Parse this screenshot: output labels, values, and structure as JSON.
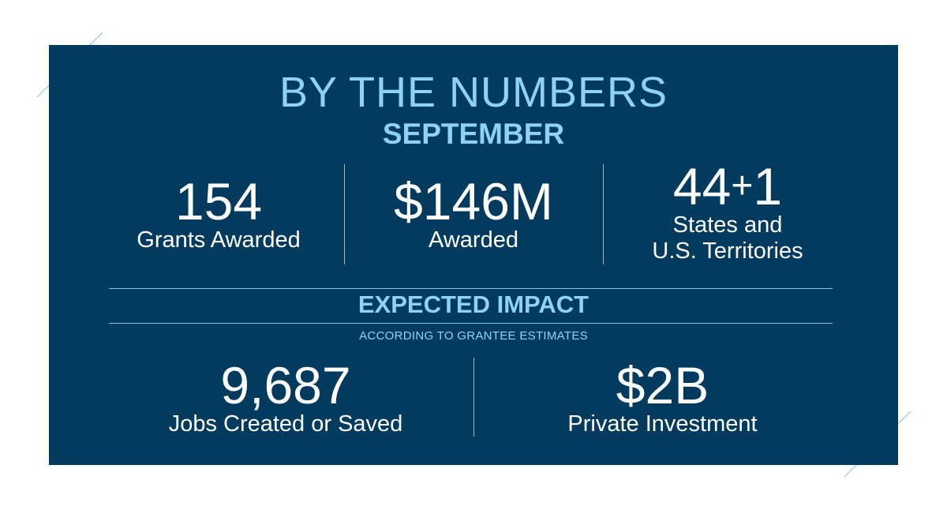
{
  "header": {
    "title": "BY THE NUMBERS",
    "period": "SEPTEMBER"
  },
  "stats": [
    {
      "value": "154",
      "label": "Grants Awarded"
    },
    {
      "value": "$146M",
      "label": "Awarded"
    },
    {
      "value_main": "44",
      "value_plus": "+",
      "value_extra": "1",
      "label_line1": "States and",
      "label_line2": "U.S. Territories"
    }
  ],
  "impact": {
    "heading": "EXPECTED IMPACT",
    "note": "ACCORDING TO GRANTEE ESTIMATES",
    "stats": [
      {
        "value": "9,687",
        "label": "Jobs Created or Saved"
      },
      {
        "value": "$2B",
        "label": "Private Investment"
      }
    ]
  },
  "colors": {
    "panel": "#033b5e",
    "accent": "#8fd3f2",
    "text": "#ffffff",
    "deco_line": "#7fc4e4"
  }
}
